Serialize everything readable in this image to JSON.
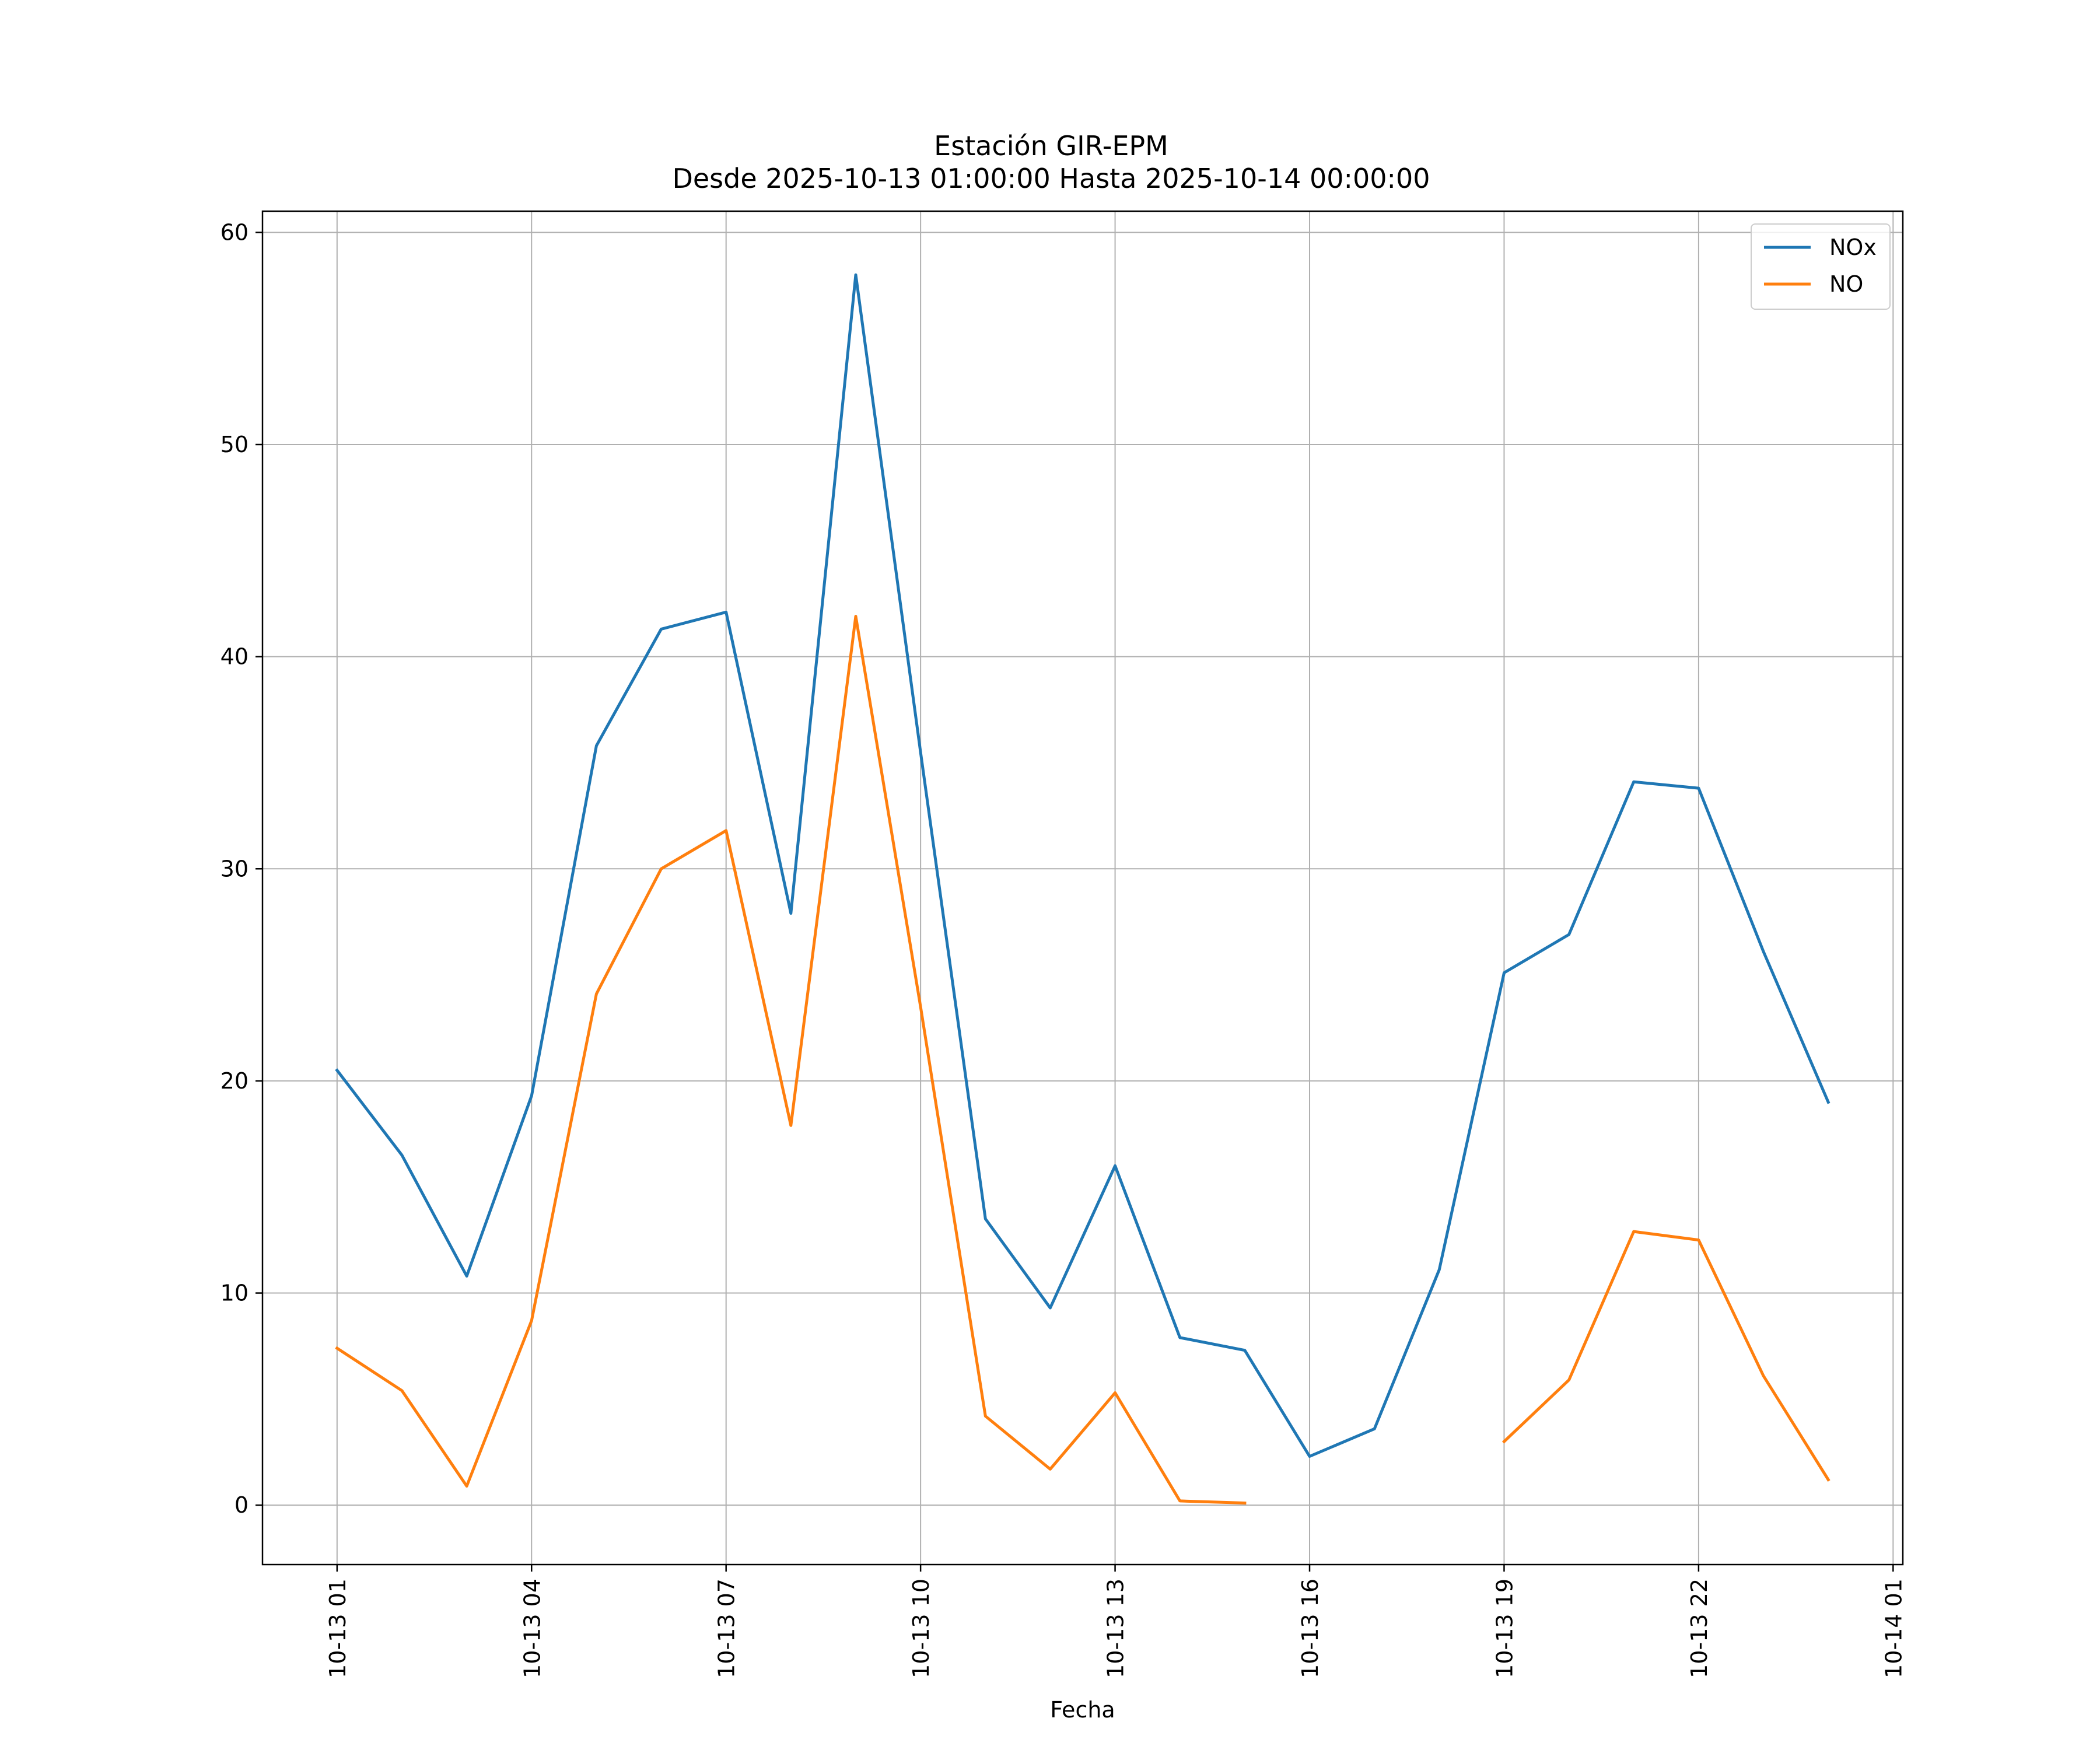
{
  "chart_data": {
    "type": "line",
    "title": "Estación GIR-EPM",
    "subtitle": "Desde 2025-10-13 01:00:00 Hasta 2025-10-14 00:00:00",
    "xlabel": "Fecha",
    "ylabel": "",
    "x": [
      "2025-10-13 01:00",
      "2025-10-13 02:00",
      "2025-10-13 03:00",
      "2025-10-13 04:00",
      "2025-10-13 05:00",
      "2025-10-13 06:00",
      "2025-10-13 07:00",
      "2025-10-13 08:00",
      "2025-10-13 09:00",
      "2025-10-13 10:00",
      "2025-10-13 11:00",
      "2025-10-13 12:00",
      "2025-10-13 13:00",
      "2025-10-13 14:00",
      "2025-10-13 15:00",
      "2025-10-13 16:00",
      "2025-10-13 17:00",
      "2025-10-13 18:00",
      "2025-10-13 19:00",
      "2025-10-13 20:00",
      "2025-10-13 21:00",
      "2025-10-13 22:00",
      "2025-10-13 23:00",
      "2025-10-14 00:00"
    ],
    "series": [
      {
        "name": "NOx",
        "color": "#1f77b4",
        "values": [
          20.5,
          16.5,
          10.8,
          19.3,
          35.8,
          41.3,
          42.1,
          27.9,
          58.0,
          35.5,
          13.5,
          9.3,
          16.0,
          7.9,
          7.3,
          2.3,
          3.6,
          11.1,
          25.1,
          26.9,
          34.1,
          33.8,
          26.1,
          19.0
        ]
      },
      {
        "name": "NO",
        "color": "#ff7f0e",
        "values": [
          7.4,
          5.4,
          0.9,
          8.7,
          24.1,
          30.0,
          31.8,
          17.9,
          41.9,
          23.5,
          4.2,
          1.7,
          5.3,
          0.2,
          0.1,
          null,
          null,
          null,
          3.0,
          5.9,
          12.9,
          12.5,
          6.1,
          1.2
        ]
      }
    ],
    "xlim": [
      "2025-10-12 23:51",
      "2025-10-14 01:09"
    ],
    "ylim": [
      -2.8,
      61.0
    ],
    "x_ticks": [
      "2025-10-13 01:00",
      "2025-10-13 04:00",
      "2025-10-13 07:00",
      "2025-10-13 10:00",
      "2025-10-13 13:00",
      "2025-10-13 16:00",
      "2025-10-13 19:00",
      "2025-10-13 22:00",
      "2025-10-14 01:00"
    ],
    "x_tick_labels": [
      "10-13 01",
      "10-13 04",
      "10-13 07",
      "10-13 10",
      "10-13 13",
      "10-13 16",
      "10-13 19",
      "10-13 22",
      "10-14 01"
    ],
    "y_ticks": [
      0,
      10,
      20,
      30,
      40,
      50,
      60
    ],
    "y_tick_labels": [
      "0",
      "10",
      "20",
      "30",
      "40",
      "50",
      "60"
    ],
    "grid": true,
    "legend_position": "top-right"
  }
}
